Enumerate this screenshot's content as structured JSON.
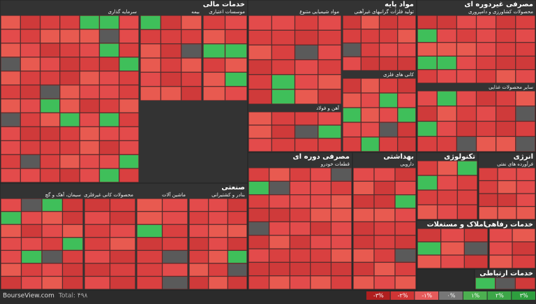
{
  "sectors": [
    {
      "title": "خدمات مالی",
      "groups": [
        "سرمایه گذاری",
        "بیمه",
        "موسسات اعتباری"
      ]
    },
    {
      "title": "مواد پایه",
      "groups": [
        "مواد شیمیایی متنوع",
        "تولید فلزات گرانبهای غیرآهنی",
        "آهن و فولاد",
        "کانی های فلزی"
      ]
    },
    {
      "title": "مصرفی غیردوره ای",
      "groups": [
        "محصولات کشاورزی و دامپروری",
        "سایر محصولات غذایی"
      ]
    },
    {
      "title": "صنعتی",
      "groups": [
        "سیمان، آهک و گچ",
        "محصولات کانی غیرفلزی",
        "ماشین آلات",
        "بنادر و کشتیرانی"
      ]
    },
    {
      "title": "مصرفی دوره ای",
      "groups": [
        "قطعات خودرو"
      ]
    },
    {
      "title": "بهداشتی",
      "groups": [
        "دارویی"
      ]
    },
    {
      "title": "تکنولوژی",
      "groups": []
    },
    {
      "title": "انرژی",
      "groups": [
        "فرآورده های نفتی"
      ]
    },
    {
      "title": "املاک و مستغلات",
      "groups": []
    },
    {
      "title": "خدمات رفاهی",
      "groups": []
    },
    {
      "title": "خدمات ارتباطی",
      "groups": []
    }
  ],
  "footer": {
    "site": "BourseView.com",
    "total": "Total: ۴۹۸"
  },
  "legend": [
    "-۳%",
    "-۲%",
    "-۱%",
    "۰%",
    "۱%",
    "۲%",
    "۳%"
  ]
}
